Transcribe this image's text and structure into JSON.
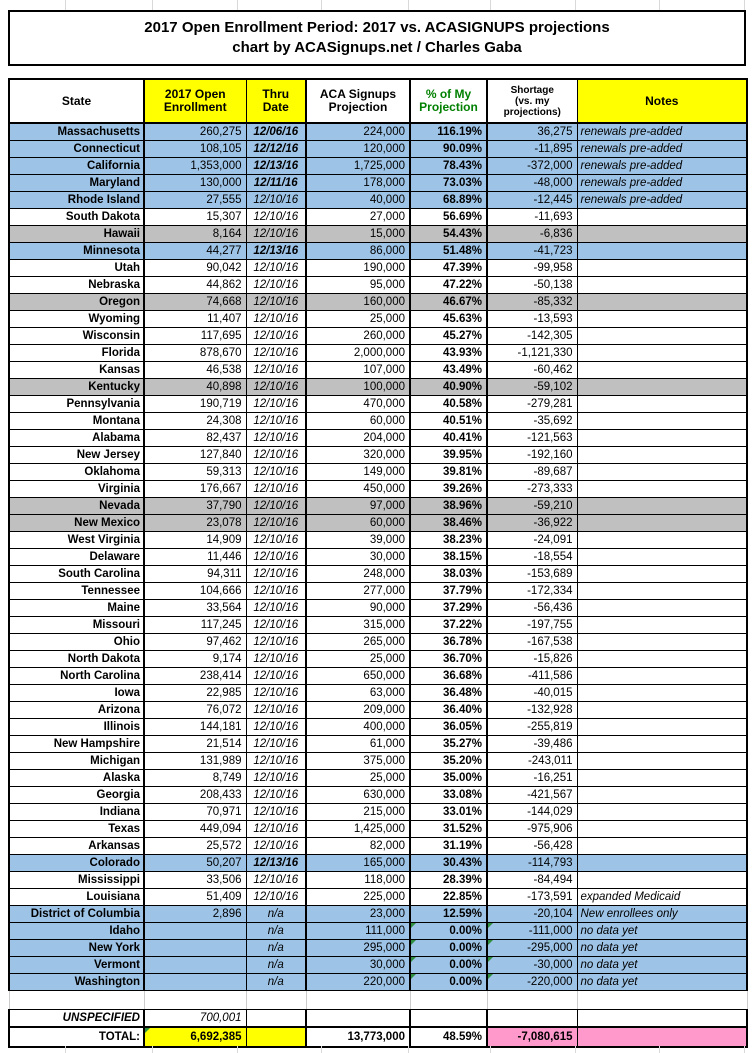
{
  "title": {
    "line1": "2017 Open Enrollment Period: 2017 vs. ACASIGNUPS projections",
    "line2": "chart by ACASignups.net / Charles Gaba"
  },
  "header": {
    "state": "State",
    "enrollment": "2017 Open\nEnrollment",
    "thru_date": "Thru\nDate",
    "projection": "ACA Signups\nProjection",
    "pct": "% of My\nProjection",
    "shortage": "Shortage\n(vs. my\nprojections)",
    "notes": "Notes"
  },
  "colors": {
    "row_blue": "#9DC3E6",
    "row_gray": "#C0C0C0",
    "header_yellow": "#FFFF00",
    "total_pink": "#FF99CC",
    "pct_header_green": "#008000",
    "comment_marker_green": "#2F8F3F",
    "border": "#000000"
  },
  "chart_data": {
    "type": "table",
    "title": "2017 Open Enrollment Period: 2017 vs. ACASIGNUPS projections",
    "subtitle": "chart by ACASignups.net / Charles Gaba",
    "columns": [
      "State",
      "2017 Open Enrollment",
      "Thru Date",
      "ACA Signups Projection",
      "% of My Projection",
      "Shortage (vs. my projections)",
      "Notes"
    ],
    "rows": [
      {
        "state": "Massachusetts",
        "enrollment": "260,275",
        "thru_date": "12/06/16",
        "thru_bold": true,
        "projection": "224,000",
        "pct": "116.19%",
        "shortage": "36,275",
        "notes": "renewals pre-added",
        "row_color": "blue",
        "note_marker": false
      },
      {
        "state": "Connecticut",
        "enrollment": "108,105",
        "thru_date": "12/12/16",
        "thru_bold": true,
        "projection": "120,000",
        "pct": "90.09%",
        "shortage": "-11,895",
        "notes": "renewals pre-added",
        "row_color": "blue",
        "note_marker": false
      },
      {
        "state": "California",
        "enrollment": "1,353,000",
        "thru_date": "12/13/16",
        "thru_bold": true,
        "projection": "1,725,000",
        "pct": "78.43%",
        "shortage": "-372,000",
        "notes": "renewals pre-added",
        "row_color": "blue",
        "note_marker": false
      },
      {
        "state": "Maryland",
        "enrollment": "130,000",
        "thru_date": "12/11/16",
        "thru_bold": true,
        "projection": "178,000",
        "pct": "73.03%",
        "shortage": "-48,000",
        "notes": "renewals pre-added",
        "row_color": "blue",
        "note_marker": false
      },
      {
        "state": "Rhode Island",
        "enrollment": "27,555",
        "thru_date": "12/10/16",
        "thru_bold": false,
        "projection": "40,000",
        "pct": "68.89%",
        "shortage": "-12,445",
        "notes": "renewals pre-added",
        "row_color": "blue",
        "note_marker": false
      },
      {
        "state": "South Dakota",
        "enrollment": "15,307",
        "thru_date": "12/10/16",
        "thru_bold": false,
        "projection": "27,000",
        "pct": "56.69%",
        "shortage": "-11,693",
        "notes": "",
        "row_color": "white",
        "note_marker": false
      },
      {
        "state": "Hawaii",
        "enrollment": "8,164",
        "thru_date": "12/10/16",
        "thru_bold": false,
        "projection": "15,000",
        "pct": "54.43%",
        "shortage": "-6,836",
        "notes": "",
        "row_color": "gray",
        "note_marker": false
      },
      {
        "state": "Minnesota",
        "enrollment": "44,277",
        "thru_date": "12/13/16",
        "thru_bold": true,
        "projection": "86,000",
        "pct": "51.48%",
        "shortage": "-41,723",
        "notes": "",
        "row_color": "blue",
        "note_marker": false
      },
      {
        "state": "Utah",
        "enrollment": "90,042",
        "thru_date": "12/10/16",
        "thru_bold": false,
        "projection": "190,000",
        "pct": "47.39%",
        "shortage": "-99,958",
        "notes": "",
        "row_color": "white",
        "note_marker": false
      },
      {
        "state": "Nebraska",
        "enrollment": "44,862",
        "thru_date": "12/10/16",
        "thru_bold": false,
        "projection": "95,000",
        "pct": "47.22%",
        "shortage": "-50,138",
        "notes": "",
        "row_color": "white",
        "note_marker": false
      },
      {
        "state": "Oregon",
        "enrollment": "74,668",
        "thru_date": "12/10/16",
        "thru_bold": false,
        "projection": "160,000",
        "pct": "46.67%",
        "shortage": "-85,332",
        "notes": "",
        "row_color": "gray",
        "note_marker": false
      },
      {
        "state": "Wyoming",
        "enrollment": "11,407",
        "thru_date": "12/10/16",
        "thru_bold": false,
        "projection": "25,000",
        "pct": "45.63%",
        "shortage": "-13,593",
        "notes": "",
        "row_color": "white",
        "note_marker": false
      },
      {
        "state": "Wisconsin",
        "enrollment": "117,695",
        "thru_date": "12/10/16",
        "thru_bold": false,
        "projection": "260,000",
        "pct": "45.27%",
        "shortage": "-142,305",
        "notes": "",
        "row_color": "white",
        "note_marker": false
      },
      {
        "state": "Florida",
        "enrollment": "878,670",
        "thru_date": "12/10/16",
        "thru_bold": false,
        "projection": "2,000,000",
        "pct": "43.93%",
        "shortage": "-1,121,330",
        "notes": "",
        "row_color": "white",
        "note_marker": false
      },
      {
        "state": "Kansas",
        "enrollment": "46,538",
        "thru_date": "12/10/16",
        "thru_bold": false,
        "projection": "107,000",
        "pct": "43.49%",
        "shortage": "-60,462",
        "notes": "",
        "row_color": "white",
        "note_marker": false
      },
      {
        "state": "Kentucky",
        "enrollment": "40,898",
        "thru_date": "12/10/16",
        "thru_bold": false,
        "projection": "100,000",
        "pct": "40.90%",
        "shortage": "-59,102",
        "notes": "",
        "row_color": "gray",
        "note_marker": false
      },
      {
        "state": "Pennsylvania",
        "enrollment": "190,719",
        "thru_date": "12/10/16",
        "thru_bold": false,
        "projection": "470,000",
        "pct": "40.58%",
        "shortage": "-279,281",
        "notes": "",
        "row_color": "white",
        "note_marker": false
      },
      {
        "state": "Montana",
        "enrollment": "24,308",
        "thru_date": "12/10/16",
        "thru_bold": false,
        "projection": "60,000",
        "pct": "40.51%",
        "shortage": "-35,692",
        "notes": "",
        "row_color": "white",
        "note_marker": false
      },
      {
        "state": "Alabama",
        "enrollment": "82,437",
        "thru_date": "12/10/16",
        "thru_bold": false,
        "projection": "204,000",
        "pct": "40.41%",
        "shortage": "-121,563",
        "notes": "",
        "row_color": "white",
        "note_marker": false
      },
      {
        "state": "New Jersey",
        "enrollment": "127,840",
        "thru_date": "12/10/16",
        "thru_bold": false,
        "projection": "320,000",
        "pct": "39.95%",
        "shortage": "-192,160",
        "notes": "",
        "row_color": "white",
        "note_marker": false
      },
      {
        "state": "Oklahoma",
        "enrollment": "59,313",
        "thru_date": "12/10/16",
        "thru_bold": false,
        "projection": "149,000",
        "pct": "39.81%",
        "shortage": "-89,687",
        "notes": "",
        "row_color": "white",
        "note_marker": false
      },
      {
        "state": "Virginia",
        "enrollment": "176,667",
        "thru_date": "12/10/16",
        "thru_bold": false,
        "projection": "450,000",
        "pct": "39.26%",
        "shortage": "-273,333",
        "notes": "",
        "row_color": "white",
        "note_marker": false
      },
      {
        "state": "Nevada",
        "enrollment": "37,790",
        "thru_date": "12/10/16",
        "thru_bold": false,
        "projection": "97,000",
        "pct": "38.96%",
        "shortage": "-59,210",
        "notes": "",
        "row_color": "gray",
        "note_marker": false
      },
      {
        "state": "New Mexico",
        "enrollment": "23,078",
        "thru_date": "12/10/16",
        "thru_bold": false,
        "projection": "60,000",
        "pct": "38.46%",
        "shortage": "-36,922",
        "notes": "",
        "row_color": "gray",
        "note_marker": false
      },
      {
        "state": "West Virginia",
        "enrollment": "14,909",
        "thru_date": "12/10/16",
        "thru_bold": false,
        "projection": "39,000",
        "pct": "38.23%",
        "shortage": "-24,091",
        "notes": "",
        "row_color": "white",
        "note_marker": false
      },
      {
        "state": "Delaware",
        "enrollment": "11,446",
        "thru_date": "12/10/16",
        "thru_bold": false,
        "projection": "30,000",
        "pct": "38.15%",
        "shortage": "-18,554",
        "notes": "",
        "row_color": "white",
        "note_marker": false
      },
      {
        "state": "South Carolina",
        "enrollment": "94,311",
        "thru_date": "12/10/16",
        "thru_bold": false,
        "projection": "248,000",
        "pct": "38.03%",
        "shortage": "-153,689",
        "notes": "",
        "row_color": "white",
        "note_marker": false
      },
      {
        "state": "Tennessee",
        "enrollment": "104,666",
        "thru_date": "12/10/16",
        "thru_bold": false,
        "projection": "277,000",
        "pct": "37.79%",
        "shortage": "-172,334",
        "notes": "",
        "row_color": "white",
        "note_marker": false
      },
      {
        "state": "Maine",
        "enrollment": "33,564",
        "thru_date": "12/10/16",
        "thru_bold": false,
        "projection": "90,000",
        "pct": "37.29%",
        "shortage": "-56,436",
        "notes": "",
        "row_color": "white",
        "note_marker": false
      },
      {
        "state": "Missouri",
        "enrollment": "117,245",
        "thru_date": "12/10/16",
        "thru_bold": false,
        "projection": "315,000",
        "pct": "37.22%",
        "shortage": "-197,755",
        "notes": "",
        "row_color": "white",
        "note_marker": false
      },
      {
        "state": "Ohio",
        "enrollment": "97,462",
        "thru_date": "12/10/16",
        "thru_bold": false,
        "projection": "265,000",
        "pct": "36.78%",
        "shortage": "-167,538",
        "notes": "",
        "row_color": "white",
        "note_marker": false
      },
      {
        "state": "North Dakota",
        "enrollment": "9,174",
        "thru_date": "12/10/16",
        "thru_bold": false,
        "projection": "25,000",
        "pct": "36.70%",
        "shortage": "-15,826",
        "notes": "",
        "row_color": "white",
        "note_marker": false
      },
      {
        "state": "North Carolina",
        "enrollment": "238,414",
        "thru_date": "12/10/16",
        "thru_bold": false,
        "projection": "650,000",
        "pct": "36.68%",
        "shortage": "-411,586",
        "notes": "",
        "row_color": "white",
        "note_marker": false
      },
      {
        "state": "Iowa",
        "enrollment": "22,985",
        "thru_date": "12/10/16",
        "thru_bold": false,
        "projection": "63,000",
        "pct": "36.48%",
        "shortage": "-40,015",
        "notes": "",
        "row_color": "white",
        "note_marker": false
      },
      {
        "state": "Arizona",
        "enrollment": "76,072",
        "thru_date": "12/10/16",
        "thru_bold": false,
        "projection": "209,000",
        "pct": "36.40%",
        "shortage": "-132,928",
        "notes": "",
        "row_color": "white",
        "note_marker": false
      },
      {
        "state": "Illinois",
        "enrollment": "144,181",
        "thru_date": "12/10/16",
        "thru_bold": false,
        "projection": "400,000",
        "pct": "36.05%",
        "shortage": "-255,819",
        "notes": "",
        "row_color": "white",
        "note_marker": false
      },
      {
        "state": "New Hampshire",
        "enrollment": "21,514",
        "thru_date": "12/10/16",
        "thru_bold": false,
        "projection": "61,000",
        "pct": "35.27%",
        "shortage": "-39,486",
        "notes": "",
        "row_color": "white",
        "note_marker": false
      },
      {
        "state": "Michigan",
        "enrollment": "131,989",
        "thru_date": "12/10/16",
        "thru_bold": false,
        "projection": "375,000",
        "pct": "35.20%",
        "shortage": "-243,011",
        "notes": "",
        "row_color": "white",
        "note_marker": false
      },
      {
        "state": "Alaska",
        "enrollment": "8,749",
        "thru_date": "12/10/16",
        "thru_bold": false,
        "projection": "25,000",
        "pct": "35.00%",
        "shortage": "-16,251",
        "notes": "",
        "row_color": "white",
        "note_marker": false
      },
      {
        "state": "Georgia",
        "enrollment": "208,433",
        "thru_date": "12/10/16",
        "thru_bold": false,
        "projection": "630,000",
        "pct": "33.08%",
        "shortage": "-421,567",
        "notes": "",
        "row_color": "white",
        "note_marker": false
      },
      {
        "state": "Indiana",
        "enrollment": "70,971",
        "thru_date": "12/10/16",
        "thru_bold": false,
        "projection": "215,000",
        "pct": "33.01%",
        "shortage": "-144,029",
        "notes": "",
        "row_color": "white",
        "note_marker": false
      },
      {
        "state": "Texas",
        "enrollment": "449,094",
        "thru_date": "12/10/16",
        "thru_bold": false,
        "projection": "1,425,000",
        "pct": "31.52%",
        "shortage": "-975,906",
        "notes": "",
        "row_color": "white",
        "note_marker": false
      },
      {
        "state": "Arkansas",
        "enrollment": "25,572",
        "thru_date": "12/10/16",
        "thru_bold": false,
        "projection": "82,000",
        "pct": "31.19%",
        "shortage": "-56,428",
        "notes": "",
        "row_color": "white",
        "note_marker": false
      },
      {
        "state": "Colorado",
        "enrollment": "50,207",
        "thru_date": "12/13/16",
        "thru_bold": true,
        "projection": "165,000",
        "pct": "30.43%",
        "shortage": "-114,793",
        "notes": "",
        "row_color": "blue",
        "note_marker": false
      },
      {
        "state": "Mississippi",
        "enrollment": "33,506",
        "thru_date": "12/10/16",
        "thru_bold": false,
        "projection": "118,000",
        "pct": "28.39%",
        "shortage": "-84,494",
        "notes": "",
        "row_color": "white",
        "note_marker": false
      },
      {
        "state": "Louisiana",
        "enrollment": "51,409",
        "thru_date": "12/10/16",
        "thru_bold": false,
        "projection": "225,000",
        "pct": "22.85%",
        "shortage": "-173,591",
        "notes": "expanded Medicaid",
        "row_color": "white",
        "note_marker": false
      },
      {
        "state": "District of Columbia",
        "enrollment": "2,896",
        "thru_date": "n/a",
        "thru_bold": false,
        "projection": "23,000",
        "pct": "12.59%",
        "shortage": "-20,104",
        "notes": "New enrollees only",
        "row_color": "blue",
        "note_marker": false
      },
      {
        "state": "Idaho",
        "enrollment": "",
        "thru_date": "n/a",
        "thru_bold": false,
        "projection": "111,000",
        "pct": "0.00%",
        "shortage": "-111,000",
        "notes": "no data yet",
        "row_color": "blue",
        "note_marker": true
      },
      {
        "state": "New York",
        "enrollment": "",
        "thru_date": "n/a",
        "thru_bold": false,
        "projection": "295,000",
        "pct": "0.00%",
        "shortage": "-295,000",
        "notes": "no data yet",
        "row_color": "blue",
        "note_marker": true
      },
      {
        "state": "Vermont",
        "enrollment": "",
        "thru_date": "n/a",
        "thru_bold": false,
        "projection": "30,000",
        "pct": "0.00%",
        "shortage": "-30,000",
        "notes": "no data yet",
        "row_color": "blue",
        "note_marker": true
      },
      {
        "state": "Washington",
        "enrollment": "",
        "thru_date": "n/a",
        "thru_bold": false,
        "projection": "220,000",
        "pct": "0.00%",
        "shortage": "-220,000",
        "notes": "no data yet",
        "row_color": "blue",
        "note_marker": true
      }
    ],
    "unspecified_row": {
      "label": "UNSPECIFIED",
      "enrollment": "700,001"
    },
    "total_row": {
      "label": "TOTAL:",
      "enrollment": "6,692,385",
      "thru_date": "",
      "projection": "13,773,000",
      "pct": "48.59%",
      "shortage": "-7,080,615",
      "notes": ""
    }
  }
}
